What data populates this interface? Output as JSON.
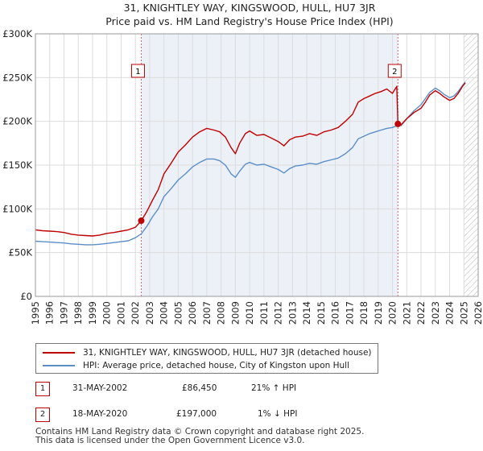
{
  "header": {
    "title_line1": "31, KNIGHTLEY WAY, KINGSWOOD, HULL, HU7 3JR",
    "title_line2": "Price paid vs. HM Land Registry's House Price Index (HPI)"
  },
  "legend": {
    "series1_label": "31, KNIGHTLEY WAY, KINGSWOOD, HULL, HU7 3JR (detached house)",
    "series2_label": "HPI: Average price, detached house, City of Kingston upon Hull"
  },
  "transactions": [
    {
      "id": "1",
      "date": "31-MAY-2002",
      "price": "£86,450",
      "hpi": "21% ↑ HPI"
    },
    {
      "id": "2",
      "date": "18-MAY-2020",
      "price": "£197,000",
      "hpi": "1% ↓ HPI"
    }
  ],
  "footer": {
    "line1": "Contains HM Land Registry data © Crown copyright and database right 2025.",
    "line2": "This data is licensed under the Open Government Licence v3.0."
  },
  "chart_data": {
    "type": "line",
    "title": "31, KNIGHTLEY WAY, KINGSWOOD, HULL, HU7 3JR",
    "subtitle": "Price paid vs. HM Land Registry's House Price Index (HPI)",
    "xlim": [
      1995,
      2026
    ],
    "ylim": [
      0,
      300000
    ],
    "x_ticks": [
      1995,
      1996,
      1997,
      1998,
      1999,
      2000,
      2001,
      2002,
      2003,
      2004,
      2005,
      2006,
      2007,
      2008,
      2009,
      2010,
      2011,
      2012,
      2013,
      2014,
      2015,
      2016,
      2017,
      2018,
      2019,
      2020,
      2021,
      2022,
      2023,
      2024,
      2025,
      2026
    ],
    "y_ticks": [
      {
        "value": 0,
        "label": "£0"
      },
      {
        "value": 50000,
        "label": "£50K"
      },
      {
        "value": 100000,
        "label": "£100K"
      },
      {
        "value": 150000,
        "label": "£150K"
      },
      {
        "value": 200000,
        "label": "£200K"
      },
      {
        "value": 250000,
        "label": "£250K"
      },
      {
        "value": 300000,
        "label": "£300K"
      }
    ],
    "grid": true,
    "colors": {
      "property": "#c00000",
      "hpi": "#5b8ec9",
      "marker_line": "#e06070",
      "shade": "#dde6f3"
    },
    "shaded_ranges": [
      [
        2002.41,
        2020.38
      ]
    ],
    "hatched_from": 2025.0,
    "series": [
      {
        "name": "31, KNIGHTLEY WAY, KINGSWOOD, HULL, HU7 3JR (detached house)",
        "x": [
          1995,
          1995.5,
          1996,
          1996.5,
          1997,
          1997.5,
          1998,
          1998.5,
          1999,
          1999.5,
          2000,
          2000.5,
          2001,
          2001.5,
          2002,
          2002.41,
          2002.8,
          2003.2,
          2003.6,
          2004,
          2004.5,
          2005,
          2005.5,
          2006,
          2006.5,
          2007,
          2007.5,
          2007.9,
          2008.3,
          2008.7,
          2009,
          2009.3,
          2009.7,
          2010,
          2010.5,
          2011,
          2011.5,
          2012,
          2012.4,
          2012.8,
          2013.2,
          2013.7,
          2014.2,
          2014.7,
          2015.2,
          2015.7,
          2016.2,
          2016.7,
          2017.2,
          2017.6,
          2018,
          2018.4,
          2018.8,
          2019.2,
          2019.6,
          2020.0,
          2020.3,
          2020.38,
          2020.6,
          2021.0,
          2021.5,
          2022.0,
          2022.3,
          2022.6,
          2023.0,
          2023.3,
          2023.6,
          2024.0,
          2024.3,
          2024.6,
          2024.9,
          2025.1
        ],
        "values": [
          76000,
          75000,
          74500,
          74000,
          73000,
          71000,
          70000,
          69500,
          69000,
          70000,
          72000,
          73000,
          74500,
          76000,
          79000,
          86450,
          97000,
          110000,
          122000,
          140000,
          152000,
          165000,
          173000,
          182000,
          188000,
          192000,
          190000,
          188000,
          182000,
          170000,
          163000,
          175000,
          186000,
          189000,
          184000,
          185000,
          181000,
          177000,
          172000,
          179000,
          182000,
          183000,
          186000,
          184000,
          188000,
          190000,
          193000,
          200000,
          208000,
          222000,
          226000,
          229000,
          232000,
          234000,
          237000,
          232000,
          240000,
          197000,
          196000,
          203000,
          210000,
          215000,
          222000,
          230000,
          235000,
          232000,
          228000,
          224000,
          226000,
          232000,
          240000,
          244000
        ]
      },
      {
        "name": "HPI: Average price, detached house, City of Kingston upon Hull",
        "x": [
          1995,
          1995.5,
          1996,
          1996.5,
          1997,
          1997.5,
          1998,
          1998.5,
          1999,
          1999.5,
          2000,
          2000.5,
          2001,
          2001.5,
          2002,
          2002.41,
          2002.8,
          2003.2,
          2003.6,
          2004,
          2004.5,
          2005,
          2005.5,
          2006,
          2006.5,
          2007,
          2007.5,
          2007.9,
          2008.3,
          2008.7,
          2009,
          2009.3,
          2009.7,
          2010,
          2010.5,
          2011,
          2011.5,
          2012,
          2012.4,
          2012.8,
          2013.2,
          2013.7,
          2014.2,
          2014.7,
          2015.2,
          2015.7,
          2016.2,
          2016.7,
          2017.2,
          2017.6,
          2018,
          2018.4,
          2018.8,
          2019.2,
          2019.6,
          2020.0,
          2020.3,
          2020.38,
          2020.6,
          2021.0,
          2021.5,
          2022.0,
          2022.3,
          2022.6,
          2023.0,
          2023.3,
          2023.6,
          2024.0,
          2024.3,
          2024.6,
          2024.9,
          2025.1
        ],
        "values": [
          63000,
          62500,
          62000,
          61500,
          61000,
          60000,
          59500,
          59000,
          59000,
          59500,
          60500,
          61500,
          62500,
          63500,
          67000,
          71500,
          80000,
          91000,
          100000,
          114000,
          123000,
          133000,
          140000,
          148000,
          153000,
          157000,
          157000,
          155000,
          150000,
          140000,
          136000,
          143000,
          151000,
          153000,
          150000,
          151000,
          148000,
          145000,
          141000,
          146000,
          149000,
          150000,
          152000,
          151000,
          154000,
          156000,
          158000,
          163000,
          170000,
          180000,
          183000,
          186000,
          188000,
          190000,
          192000,
          193000,
          195000,
          199000,
          195000,
          203000,
          212000,
          219000,
          226000,
          233000,
          238000,
          235000,
          231000,
          227000,
          229000,
          234000,
          241000,
          245000
        ]
      }
    ],
    "annotations": [
      {
        "label": "1",
        "x": 2002.41,
        "y": 86450
      },
      {
        "label": "2",
        "x": 2020.38,
        "y": 197000
      }
    ]
  }
}
